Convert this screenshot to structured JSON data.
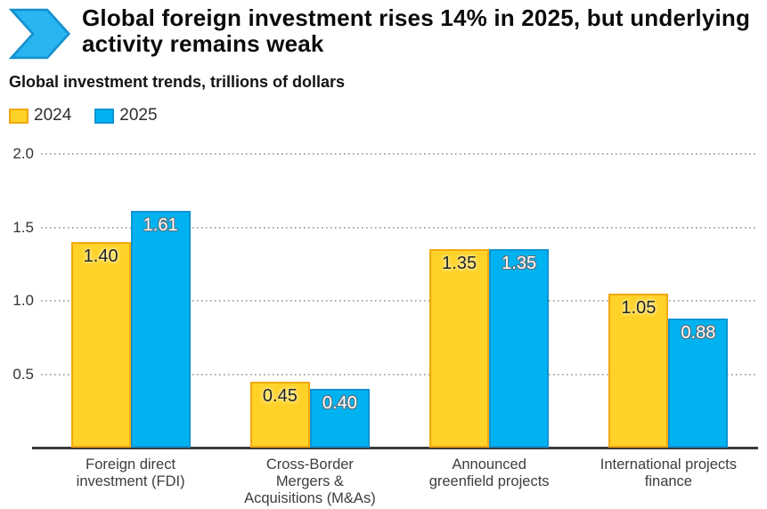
{
  "header": {
    "title": "Global foreign investment rises 14% in 2025, but underlying activity remains weak",
    "logo_icon": "blue-chevron-arrow",
    "logo_fill": "#29B5F2",
    "logo_stroke": "#1791CD"
  },
  "subtitle": "Global investment trends, trillions of dollars",
  "chart_data": {
    "type": "bar",
    "title": "Global foreign investment rises 14% in 2025, but underlying activity remains weak",
    "subtitle": "Global investment trends, trillions of dollars",
    "unit": "trillions of dollars",
    "categories": [
      {
        "label": "Foreign direct investment (FDI)",
        "lines": [
          "Foreign direct",
          "investment (FDI)"
        ]
      },
      {
        "label": "Cross-Border Mergers & Acquisitions (M&As)",
        "lines": [
          "Cross-Border",
          "Mergers &",
          "Acquisitions (M&As)"
        ]
      },
      {
        "label": "Announced greenfield projects",
        "lines": [
          "Announced",
          "greenfield projects"
        ]
      },
      {
        "label": "International projects finance",
        "lines": [
          "International projects",
          "finance"
        ]
      }
    ],
    "series": [
      {
        "name": "2024",
        "color": "#FFD227",
        "border_color": "#F2A70F",
        "values": [
          1.4,
          0.45,
          1.35,
          1.05
        ]
      },
      {
        "name": "2025",
        "color": "#00B3F0",
        "border_color": "#0E93D3",
        "values": [
          1.61,
          0.4,
          1.35,
          0.88
        ]
      }
    ],
    "value_labels": [
      [
        "1.40",
        "0.45",
        "1.35",
        "1.05"
      ],
      [
        "1.61",
        "0.40",
        "1.35",
        "0.88"
      ]
    ],
    "ylim": [
      0,
      2.0
    ],
    "yticks": [
      "0.5",
      "1.0",
      "1.5",
      "2.0"
    ],
    "grid": "dotted-horizontal",
    "legend_position": "top-left",
    "gridline_color": "#9c9c9c",
    "axis_line_color": "#3b3b3b"
  }
}
